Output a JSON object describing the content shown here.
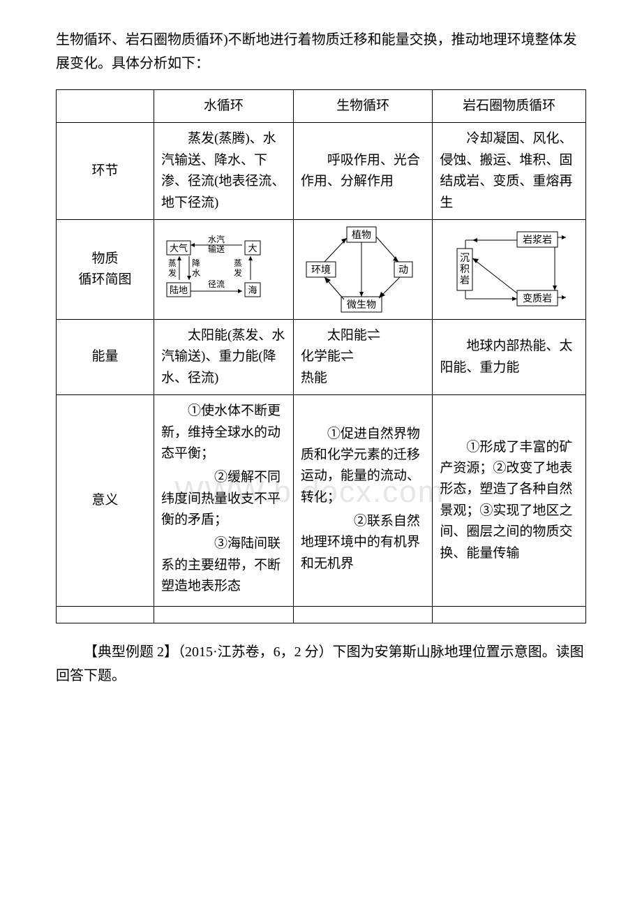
{
  "intro": "生物循环、岩石圈物质循环)不断地进行着物质迁移和能量交换，推动地理环境整体发展变化。具体分析如下：",
  "watermark": "WWW.b docx.com",
  "table": {
    "headers": {
      "blank": "",
      "col1": "水循环",
      "col2": "生物循环",
      "col3": "岩石圈物质循环"
    },
    "rows": {
      "huanjie": {
        "label": "环节",
        "col1": "蒸发(蒸腾)、水汽输送、降水、下渗、径流(地表径流、地下径流)",
        "col2": "呼吸作用、光合作用、分解作用",
        "col3": "冷却凝固、风化、侵蚀、搬运、堆积、固结成岩、变质、重熔再生"
      },
      "diagram": {
        "label_line1": "物质",
        "label_line2": "循环简图"
      },
      "nengliang": {
        "label": "能量",
        "col1": "太阳能(蒸发、水汽输送)、重力能(降水、径流)",
        "col2_line1": "太阳能⇌",
        "col2_line2": "化学能⇌",
        "col2_line3": "热能",
        "col3": "地球内部热能、太阳能、重力能"
      },
      "yiyi": {
        "label": "意义",
        "col1": "①使水体不断更新，维持全球水的动态平衡；\n　　②缓解不同纬度间热量收支不平衡的矛盾；\n　　③海陆间联系的主要纽带，不断塑造地表形态",
        "col2": "①促进自然界物质和化学元素的迁移运动，能量的流动、转化；\n　　②联系自然地理环境中的有机界和无机界",
        "col3": "①形成了丰富的矿产资源；②改变了地表形态，塑造了各种自然景观；③实现了地区之间、圈层之间的物质交换、能量传输"
      }
    }
  },
  "diagrams": {
    "water": {
      "labels": {
        "daqi": "大气",
        "shuiqi": "水汽",
        "shusong": "输送",
        "da": "大",
        "zhengfa": "蒸发",
        "jiang": "降",
        "shui": "水",
        "ludi": "陆地",
        "jingliu": "径流",
        "hai": "海"
      },
      "box_stroke": "#000000",
      "text_color": "#000000",
      "font_size": 12
    },
    "bio": {
      "labels": {
        "zhiwu": "植物",
        "huanjing": "环境",
        "dong": "动",
        "weishengwu": "微生物"
      },
      "box_stroke": "#000000",
      "text_color": "#000000",
      "font_size": 13
    },
    "rock": {
      "labels": {
        "yanjiangyan": "岩浆岩",
        "chenji": "沉积岩",
        "bianzhiyan": "变质岩"
      },
      "box_stroke": "#000000",
      "text_color": "#000000",
      "font_size": 13
    }
  },
  "footer": "【典型例题 2】（2015·江苏卷，6，2 分）下图为安第斯山脉地理位置示意图。读图回答下题。"
}
